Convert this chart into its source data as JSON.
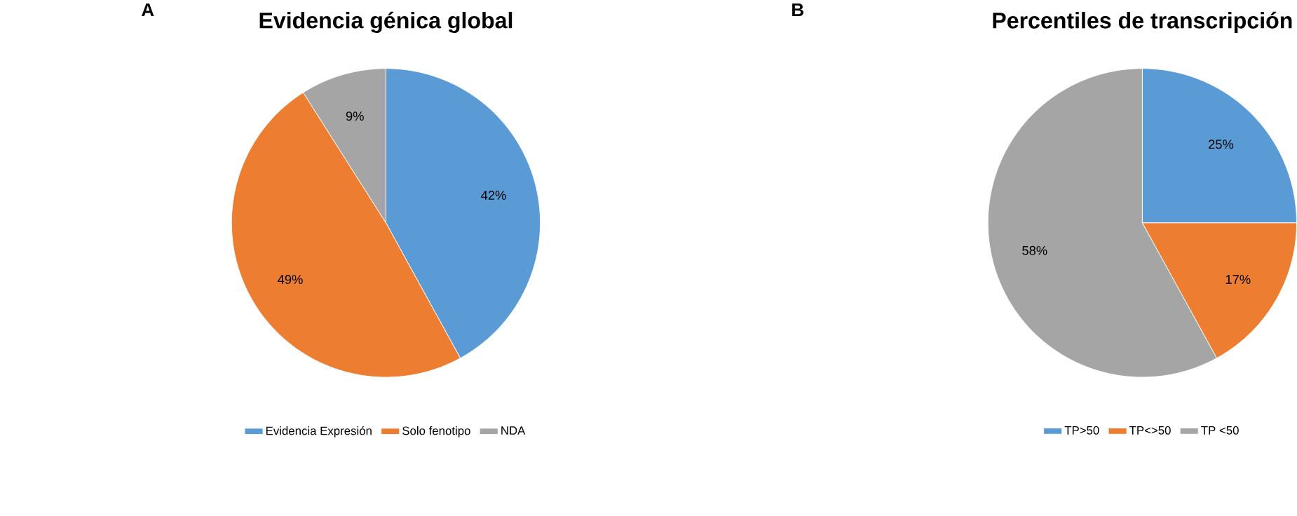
{
  "chart_data": [
    {
      "type": "pie",
      "title": "Evidencia génica global",
      "annotations": [
        "A"
      ],
      "categories": [
        "Evidencia Expresión",
        "Solo fenotipo",
        "NDA"
      ],
      "values": [
        42,
        49,
        9
      ],
      "value_labels": [
        "42%",
        "49%",
        "9%"
      ],
      "colors": [
        "#5b9bd5",
        "#ed7d31",
        "#a5a5a5"
      ],
      "legend": "bottom"
    },
    {
      "type": "pie",
      "title": "Percentiles de transcripción",
      "annotations": [
        "B"
      ],
      "categories": [
        "TP>50",
        "TP<>50",
        "TP <50"
      ],
      "values": [
        25,
        17,
        58
      ],
      "value_labels": [
        "25%",
        "17%",
        "58%"
      ],
      "colors": [
        "#5b9bd5",
        "#ed7d31",
        "#a5a5a5"
      ],
      "legend": "bottom"
    }
  ]
}
